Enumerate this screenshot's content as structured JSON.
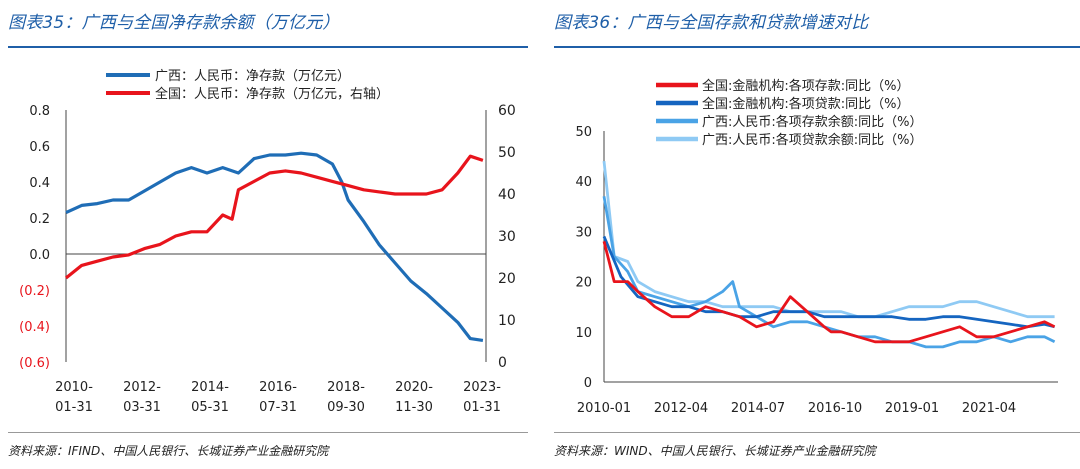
{
  "left": {
    "title": "图表35：广西与全国净存款余额（万亿元）",
    "source": "资料来源：IFIND、中国人民银行、长城证券产业金融研究院"
  },
  "right": {
    "title": "图表36：广西与全国存款和贷款增速对比",
    "source": "资料来源：WIND、中国人民银行、长城证券产业金融研究院"
  },
  "colors": {
    "title": "#1f5fa8",
    "red": "#e8141c",
    "blue": "#1f6db6",
    "darkblue": "#1565c0",
    "lightblue": "#4aa3e6",
    "paleblue": "#8fcaf4"
  },
  "chart_data": [
    {
      "type": "line",
      "title": "广西与全国净存款余额（万亿元）",
      "x_ticks": [
        "2010-\n01-31",
        "2012-\n03-31",
        "2014-\n05-31",
        "2016-\n07-31",
        "2018-\n09-30",
        "2020-\n11-30",
        "2023-\n01-31"
      ],
      "x_range": [
        2010.0,
        2023.4
      ],
      "left_axis": {
        "ylim": [
          -0.6,
          0.8
        ],
        "ticks": [
          "0.8",
          "0.6",
          "0.4",
          "0.2",
          "0.0",
          "(0.2)",
          "(0.4)",
          "(0.6)"
        ],
        "values": [
          0.8,
          0.6,
          0.4,
          0.2,
          0.0,
          -0.2,
          -0.4,
          -0.6
        ]
      },
      "right_axis": {
        "ylim": [
          0,
          60
        ],
        "ticks": [
          "60",
          "50",
          "40",
          "30",
          "20",
          "10",
          "0"
        ],
        "values": [
          60,
          50,
          40,
          30,
          20,
          10,
          0
        ]
      },
      "series": [
        {
          "name": "广西：人民币：净存款（万亿元）",
          "axis": "left",
          "color": "#1f6db6",
          "x": [
            2010.0,
            2010.5,
            2011.0,
            2011.5,
            2012.0,
            2012.5,
            2013.0,
            2013.5,
            2014.0,
            2014.5,
            2015.0,
            2015.5,
            2016.0,
            2016.5,
            2017.0,
            2017.5,
            2018.0,
            2018.5,
            2018.8,
            2019.0,
            2019.5,
            2020.0,
            2020.5,
            2021.0,
            2021.5,
            2022.0,
            2022.5,
            2022.9,
            2023.3
          ],
          "y": [
            0.23,
            0.27,
            0.28,
            0.3,
            0.3,
            0.35,
            0.4,
            0.45,
            0.48,
            0.45,
            0.48,
            0.45,
            0.53,
            0.55,
            0.55,
            0.56,
            0.55,
            0.5,
            0.4,
            0.3,
            0.18,
            0.05,
            -0.05,
            -0.15,
            -0.22,
            -0.3,
            -0.38,
            -0.47,
            -0.48
          ]
        },
        {
          "name": "全国：人民币：净存款（万亿元，右轴）",
          "axis": "right",
          "color": "#e8141c",
          "x": [
            2010.0,
            2010.5,
            2011.0,
            2011.5,
            2012.0,
            2012.5,
            2013.0,
            2013.5,
            2014.0,
            2014.5,
            2015.0,
            2015.3,
            2015.5,
            2016.0,
            2016.5,
            2017.0,
            2017.5,
            2018.0,
            2018.5,
            2019.0,
            2019.5,
            2020.0,
            2020.5,
            2021.0,
            2021.5,
            2022.0,
            2022.5,
            2022.9,
            2023.3
          ],
          "y": [
            20,
            23,
            24,
            25,
            25.5,
            27,
            28,
            30,
            31,
            31,
            35,
            34,
            41,
            43,
            45,
            45.5,
            45,
            44,
            43,
            42,
            41,
            40.5,
            40,
            40,
            40,
            41,
            45,
            49,
            48
          ]
        }
      ],
      "legend": "top-center"
    },
    {
      "type": "line",
      "title": "广西与全国存款和贷款增速对比",
      "x_ticks": [
        "2010-01",
        "2012-04",
        "2014-07",
        "2016-10",
        "2019-01",
        "2021-04"
      ],
      "x_range": [
        2010.0,
        2023.4
      ],
      "ylim": [
        0,
        50
      ],
      "y_ticks": [
        "0",
        "10",
        "20",
        "30",
        "40",
        "50"
      ],
      "y_values": [
        0,
        10,
        20,
        30,
        40,
        50
      ],
      "series": [
        {
          "name": "全国:金融机构:各项存款:同比（%）",
          "color": "#e8141c",
          "x": [
            2010.0,
            2010.3,
            2010.7,
            2011.0,
            2011.5,
            2012.0,
            2012.5,
            2013.0,
            2013.5,
            2014.0,
            2014.5,
            2015.0,
            2015.5,
            2016.0,
            2016.5,
            2016.7,
            2017.0,
            2017.5,
            2018.0,
            2018.5,
            2019.0,
            2019.5,
            2020.0,
            2020.5,
            2021.0,
            2021.5,
            2022.0,
            2022.5,
            2023.0,
            2023.3
          ],
          "y": [
            28,
            20,
            20,
            18,
            15,
            13,
            13,
            15,
            14,
            13,
            11,
            12,
            17,
            14,
            11,
            10,
            10,
            9,
            8,
            8,
            8,
            9,
            10,
            11,
            9,
            9,
            10,
            11,
            12,
            11
          ]
        },
        {
          "name": "全国:金融机构:各项贷款:同比（%）",
          "color": "#1565c0",
          "x": [
            2010.0,
            2010.5,
            2011.0,
            2011.5,
            2012.0,
            2012.5,
            2013.0,
            2013.5,
            2014.0,
            2014.5,
            2015.0,
            2015.5,
            2016.0,
            2016.5,
            2017.0,
            2017.5,
            2018.0,
            2018.5,
            2019.0,
            2019.5,
            2020.0,
            2020.5,
            2021.0,
            2021.5,
            2022.0,
            2022.5,
            2023.0,
            2023.3
          ],
          "y": [
            29,
            21,
            17,
            16,
            15,
            15,
            14,
            14,
            13,
            13,
            14,
            14,
            14,
            13,
            13,
            13,
            13,
            13,
            12.5,
            12.5,
            13,
            13,
            12.5,
            12,
            11.5,
            11,
            11.5,
            11
          ]
        },
        {
          "name": "广西:人民币:各项存款余额:同比（%）",
          "color": "#4aa3e6",
          "x": [
            2010.0,
            2010.3,
            2010.7,
            2011.0,
            2011.5,
            2012.0,
            2012.5,
            2013.0,
            2013.5,
            2013.8,
            2014.0,
            2014.5,
            2015.0,
            2015.5,
            2016.0,
            2016.5,
            2017.0,
            2017.5,
            2018.0,
            2018.5,
            2019.0,
            2019.5,
            2020.0,
            2020.5,
            2021.0,
            2021.5,
            2022.0,
            2022.5,
            2023.0,
            2023.3
          ],
          "y": [
            37,
            25,
            22,
            18,
            17,
            16,
            15,
            16,
            18,
            20,
            15,
            13,
            11,
            12,
            12,
            11,
            10,
            9,
            9,
            8,
            8,
            7,
            7,
            8,
            8,
            9,
            8,
            9,
            9,
            8
          ]
        },
        {
          "name": "广西:人民币:各项贷款余额:同比（%）",
          "color": "#8fcaf4",
          "x": [
            2010.0,
            2010.3,
            2010.7,
            2011.0,
            2011.5,
            2012.0,
            2012.5,
            2013.0,
            2013.5,
            2014.0,
            2014.5,
            2015.0,
            2015.5,
            2016.0,
            2016.5,
            2017.0,
            2017.5,
            2018.0,
            2018.5,
            2019.0,
            2019.5,
            2020.0,
            2020.5,
            2021.0,
            2021.5,
            2022.0,
            2022.5,
            2023.0,
            2023.3
          ],
          "y": [
            44,
            25,
            24,
            20,
            18,
            17,
            16,
            16,
            15,
            15,
            15,
            15,
            14,
            14,
            14,
            14,
            13,
            13,
            14,
            15,
            15,
            15,
            16,
            16,
            15,
            14,
            13,
            13,
            13
          ]
        }
      ],
      "legend": "top-center"
    }
  ]
}
